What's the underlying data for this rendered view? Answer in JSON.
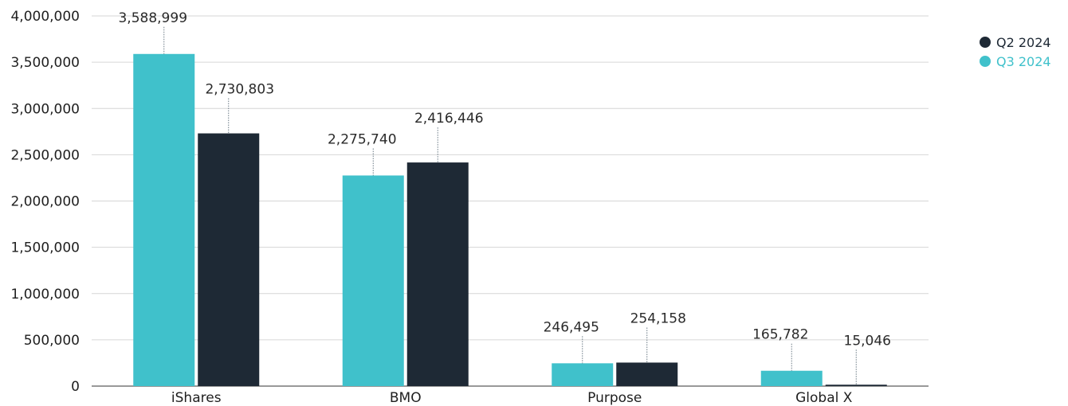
{
  "chart_data": {
    "type": "bar",
    "categories": [
      "iShares",
      "BMO",
      "Purpose",
      "Global X"
    ],
    "series": [
      {
        "name": "Q3 2024",
        "color": "#40c1cb",
        "values": [
          3588999,
          2275740,
          246495,
          165782
        ]
      },
      {
        "name": "Q2 2024",
        "color": "#1e2935",
        "values": [
          2730803,
          2416446,
          254158,
          15046
        ]
      }
    ],
    "value_labels": [
      [
        "3,588,999",
        "2,275,740",
        "246,495",
        "165,782"
      ],
      [
        "2,730,803",
        "2,416,446",
        "254,158",
        "15,046"
      ]
    ],
    "y_ticks": [
      0,
      500000,
      1000000,
      1500000,
      2000000,
      2500000,
      3000000,
      3500000,
      4000000
    ],
    "y_tick_labels": [
      "0",
      "500,000",
      "1,000,000",
      "1,500,000",
      "2,000,000",
      "2,500,000",
      "3,000,000",
      "3,500,000",
      "4,000,000"
    ],
    "ylim": [
      0,
      4000000
    ],
    "grid": true,
    "legend_position": "top-right",
    "title": "",
    "xlabel": "",
    "ylabel": ""
  },
  "legend": [
    {
      "label": "Q2 2024",
      "color": "#1e2935"
    },
    {
      "label": "Q3 2024",
      "color": "#40c1cb"
    }
  ]
}
